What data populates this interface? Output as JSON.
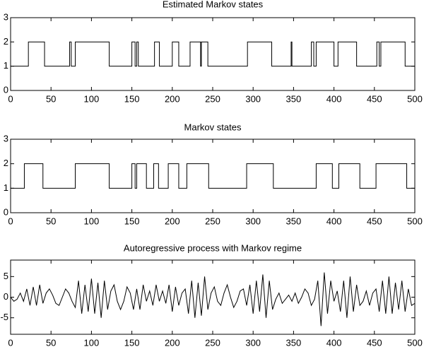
{
  "chart_data": [
    {
      "type": "line",
      "title": "Estimated Markov states",
      "color": "#000000",
      "x": [
        0,
        22,
        22,
        42,
        42,
        73,
        73,
        75,
        75,
        80,
        80,
        122,
        122,
        150,
        150,
        154,
        154,
        156,
        156,
        158,
        158,
        178,
        178,
        184,
        184,
        200,
        200,
        208,
        208,
        222,
        222,
        235,
        235,
        236,
        236,
        244,
        244,
        293,
        293,
        323,
        323,
        347,
        347,
        348,
        348,
        372,
        372,
        375,
        375,
        378,
        378,
        400,
        400,
        405,
        405,
        428,
        428,
        453,
        453,
        456,
        456,
        458,
        458,
        488,
        488,
        500
      ],
      "values": [
        1,
        1,
        2,
        2,
        1,
        1,
        2,
        2,
        1,
        1,
        2,
        2,
        1,
        1,
        2,
        2,
        1,
        1,
        2,
        2,
        1,
        1,
        2,
        2,
        1,
        1,
        2,
        2,
        1,
        1,
        2,
        2,
        1,
        1,
        2,
        2,
        1,
        1,
        2,
        2,
        1,
        1,
        2,
        2,
        1,
        1,
        2,
        2,
        1,
        1,
        2,
        2,
        1,
        1,
        2,
        2,
        1,
        1,
        2,
        2,
        1,
        1,
        2,
        2,
        1,
        1
      ],
      "xlim": [
        0,
        500
      ],
      "ylim": [
        0,
        3
      ],
      "xticks": [
        0,
        50,
        100,
        150,
        200,
        250,
        300,
        350,
        400,
        450,
        500
      ],
      "yticks": [
        0,
        1,
        2,
        3
      ]
    },
    {
      "type": "line",
      "title": "Markov states",
      "color": "#000000",
      "x": [
        0,
        17,
        17,
        40,
        40,
        80,
        80,
        122,
        122,
        150,
        150,
        154,
        154,
        156,
        156,
        168,
        168,
        177,
        177,
        183,
        183,
        195,
        195,
        208,
        208,
        218,
        218,
        245,
        245,
        292,
        292,
        325,
        325,
        378,
        378,
        398,
        398,
        406,
        406,
        432,
        432,
        452,
        452,
        490,
        490,
        500
      ],
      "values": [
        1,
        1,
        2,
        2,
        1,
        1,
        2,
        2,
        1,
        1,
        2,
        2,
        1,
        1,
        2,
        2,
        1,
        1,
        2,
        2,
        1,
        1,
        2,
        2,
        1,
        1,
        2,
        2,
        1,
        1,
        2,
        2,
        1,
        1,
        2,
        2,
        1,
        1,
        2,
        2,
        1,
        1,
        2,
        2,
        1,
        1
      ],
      "xlim": [
        0,
        500
      ],
      "ylim": [
        0,
        3
      ],
      "xticks": [
        0,
        50,
        100,
        150,
        200,
        250,
        300,
        350,
        400,
        450,
        500
      ],
      "yticks": [
        0,
        1,
        2,
        3
      ]
    },
    {
      "type": "line",
      "title": "Autoregressive process with Markov regime",
      "color": "#000000",
      "x": [
        0,
        4,
        8,
        12,
        16,
        20,
        24,
        28,
        32,
        36,
        40,
        44,
        48,
        52,
        56,
        60,
        64,
        68,
        72,
        76,
        80,
        84,
        88,
        92,
        96,
        100,
        104,
        108,
        112,
        116,
        120,
        124,
        128,
        132,
        136,
        140,
        144,
        148,
        152,
        156,
        160,
        164,
        168,
        172,
        176,
        180,
        184,
        188,
        192,
        196,
        200,
        204,
        208,
        212,
        216,
        220,
        224,
        228,
        232,
        236,
        240,
        244,
        248,
        252,
        256,
        260,
        264,
        268,
        272,
        276,
        280,
        284,
        288,
        292,
        296,
        300,
        304,
        308,
        312,
        316,
        320,
        324,
        328,
        332,
        336,
        340,
        344,
        348,
        352,
        356,
        360,
        364,
        368,
        372,
        376,
        380,
        384,
        388,
        392,
        396,
        400,
        404,
        408,
        412,
        416,
        420,
        424,
        428,
        432,
        436,
        440,
        444,
        448,
        452,
        456,
        460,
        464,
        468,
        472,
        476,
        480,
        484,
        488,
        492,
        496,
        500
      ],
      "values": [
        0,
        -1,
        -0.5,
        1,
        -1,
        2,
        -2,
        2.5,
        -2,
        3,
        -1.5,
        1,
        2,
        0.5,
        -1.5,
        -2,
        0,
        2,
        1,
        -1,
        -2.5,
        4,
        -4,
        3,
        -3.5,
        4.5,
        -4,
        3.5,
        -5,
        4,
        -3,
        1.5,
        3,
        -1,
        -3,
        -1,
        2.5,
        1,
        -3,
        2,
        -3,
        3,
        -1,
        1.5,
        -2,
        3,
        -1,
        1.5,
        -1.5,
        3,
        -3.5,
        2.5,
        -2,
        1,
        2,
        -4,
        4,
        -5,
        3.5,
        -4.5,
        5,
        -3,
        1,
        2.5,
        -1,
        -2,
        1,
        3,
        0,
        -2.5,
        -1,
        1.5,
        2,
        -2,
        3,
        -4,
        4,
        -3.5,
        5.5,
        -5,
        4,
        -3,
        -0.5,
        1,
        -1.5,
        -0.5,
        0.5,
        -1,
        1,
        -1.5,
        0,
        2,
        1,
        -2,
        -0.5,
        4,
        -7,
        6,
        -4,
        4,
        -1,
        1.5,
        -3.5,
        4,
        -5,
        5,
        -3.5,
        3,
        -2,
        -1,
        1.5,
        -2,
        1,
        2,
        -3.5,
        4,
        -4,
        5,
        -4,
        3.5,
        -3,
        4,
        -3.5,
        2,
        -2,
        -1.5
      ],
      "xlim": [
        0,
        500
      ],
      "ylim": [
        -9,
        9
      ],
      "xticks": [
        0,
        50,
        100,
        150,
        200,
        250,
        300,
        350,
        400,
        450,
        500
      ],
      "yticks": [
        -5,
        0,
        5
      ]
    }
  ]
}
